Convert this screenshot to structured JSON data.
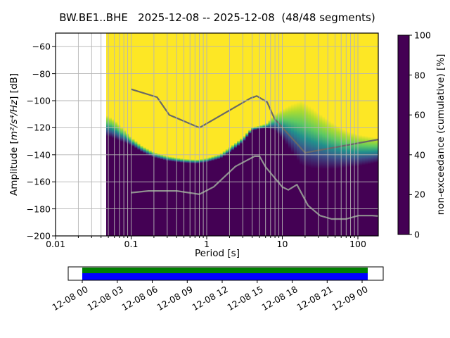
{
  "header": {
    "title": "BW.BE1..BHE   2025-12-08 -- 2025-12-08  (48/48 segments)"
  },
  "chart_data": {
    "type": "heatmap",
    "subtype": "ppsd-spectral-distribution",
    "title": "BW.BE1..BHE   2025-12-08 -- 2025-12-08  (48/48 segments)",
    "xlabel": "Period [s]",
    "ylabel": "Amplitude [m²/s⁴/Hz] [dB]",
    "ylabel_prefix": "Amplitude [",
    "ylabel_math": "m²/s⁴/Hz",
    "ylabel_suffix": "] [dB]",
    "colorbar_label": "non-exceedance (cumulative) [%]",
    "x_scale": "log",
    "xlim": [
      0.01,
      186
    ],
    "ylim": [
      -200,
      -50
    ],
    "grid_on": true,
    "grid_color": "#b5b5b5",
    "x_ticks": {
      "values": [
        0.01,
        0.1,
        1,
        10,
        100
      ],
      "labels": [
        "0.01",
        "0.1",
        "1",
        "10",
        "100"
      ]
    },
    "y_ticks": {
      "values": [
        -200,
        -180,
        -160,
        -140,
        -120,
        -100,
        -80,
        -60
      ],
      "labels": [
        "−200",
        "−180",
        "−160",
        "−140",
        "−120",
        "−100",
        "−80",
        "−60"
      ]
    },
    "colorbar": {
      "ticks": [
        0,
        20,
        40,
        60,
        80,
        100
      ],
      "tick_labels": [
        "0",
        "20",
        "40",
        "60",
        "80",
        "100"
      ],
      "stops": [
        0,
        0.25,
        0.5,
        0.75,
        1
      ],
      "stop_colors": [
        "#440154",
        "#3b528b",
        "#21918c",
        "#5ec962",
        "#fde725"
      ]
    },
    "distribution": {
      "description": "per-period dB where cumulative distribution reaches 100% (db_top, yellow) and 0% (db_bottom, purple)",
      "period_min": 0.0467,
      "period_max": 186,
      "gradient_offsets": [
        0,
        0.15,
        0.35,
        0.55,
        0.75,
        1
      ],
      "gradient_colors": [
        "#fde725",
        "#addc30",
        "#5ec962",
        "#21918c",
        "#3b528b",
        "#440154"
      ],
      "columns": [
        {
          "period": 0.0467,
          "db_top": -110.5,
          "db_bottom": -126
        },
        {
          "period": 0.06,
          "db_top": -114,
          "db_bottom": -128
        },
        {
          "period": 0.08,
          "db_top": -121,
          "db_bottom": -131
        },
        {
          "period": 0.1,
          "db_top": -127,
          "db_bottom": -133
        },
        {
          "period": 0.14,
          "db_top": -133.5,
          "db_bottom": -138
        },
        {
          "period": 0.2,
          "db_top": -138,
          "db_bottom": -142
        },
        {
          "period": 0.3,
          "db_top": -141,
          "db_bottom": -144.5
        },
        {
          "period": 0.5,
          "db_top": -143,
          "db_bottom": -146
        },
        {
          "period": 0.75,
          "db_top": -143.5,
          "db_bottom": -146.5
        },
        {
          "period": 1.0,
          "db_top": -142.5,
          "db_bottom": -145.5
        },
        {
          "period": 1.5,
          "db_top": -139.5,
          "db_bottom": -143
        },
        {
          "period": 2.0,
          "db_top": -134.5,
          "db_bottom": -138.5
        },
        {
          "period": 3.0,
          "db_top": -127,
          "db_bottom": -131
        },
        {
          "period": 4.0,
          "db_top": -119.5,
          "db_bottom": -122
        },
        {
          "period": 5.0,
          "db_top": -118.5,
          "db_bottom": -121
        },
        {
          "period": 6.3,
          "db_top": -116.5,
          "db_bottom": -120.5
        },
        {
          "period": 8.0,
          "db_top": -110,
          "db_bottom": -122
        },
        {
          "period": 10,
          "db_top": -106.5,
          "db_bottom": -128
        },
        {
          "period": 13,
          "db_top": -103,
          "db_bottom": -137
        },
        {
          "period": 18,
          "db_top": -100,
          "db_bottom": -148
        },
        {
          "period": 25,
          "db_top": -105.5,
          "db_bottom": -150
        },
        {
          "period": 35,
          "db_top": -111.5,
          "db_bottom": -150.5
        },
        {
          "period": 50,
          "db_top": -117.5,
          "db_bottom": -150.5
        },
        {
          "period": 70,
          "db_top": -122,
          "db_bottom": -149.5
        },
        {
          "period": 100,
          "db_top": -125,
          "db_bottom": -148.5
        },
        {
          "period": 140,
          "db_top": -126.5,
          "db_bottom": -147
        },
        {
          "period": 186,
          "db_top": -127.5,
          "db_bottom": -145.5
        }
      ]
    },
    "noise_models": {
      "high_color": "#686868",
      "low_color": "#909090",
      "nhnm": [
        [
          0.1,
          -91.5
        ],
        [
          0.22,
          -97.4
        ],
        [
          0.32,
          -110.5
        ],
        [
          0.8,
          -120
        ],
        [
          3.8,
          -98.1
        ],
        [
          4.6,
          -96.5
        ],
        [
          6.3,
          -101
        ],
        [
          7.9,
          -113.5
        ],
        [
          20,
          -138.5
        ],
        [
          186,
          -128.7
        ]
      ],
      "nlnm": [
        [
          0.1,
          -168
        ],
        [
          0.17,
          -166.7
        ],
        [
          0.4,
          -166.7
        ],
        [
          0.8,
          -169.2
        ],
        [
          1.24,
          -163.7
        ],
        [
          2.4,
          -148.6
        ],
        [
          4.3,
          -141.1
        ],
        [
          5,
          -141.1
        ],
        [
          6,
          -149
        ],
        [
          10,
          -163.8
        ],
        [
          12,
          -166
        ],
        [
          15.6,
          -162.1
        ],
        [
          21.9,
          -177.5
        ],
        [
          31.6,
          -185
        ],
        [
          45,
          -187.5
        ],
        [
          70,
          -187.5
        ],
        [
          101,
          -185
        ],
        [
          154,
          -185
        ],
        [
          186,
          -185.3
        ]
      ]
    },
    "timeline": {
      "tick_labels": [
        "12-08 00",
        "12-08 03",
        "12-08 06",
        "12-08 09",
        "12-08 12",
        "12-08 15",
        "12-08 18",
        "12-08 21",
        "12-09 00"
      ],
      "coverage_color": "#008000",
      "availability_color": "#0000ff"
    }
  }
}
